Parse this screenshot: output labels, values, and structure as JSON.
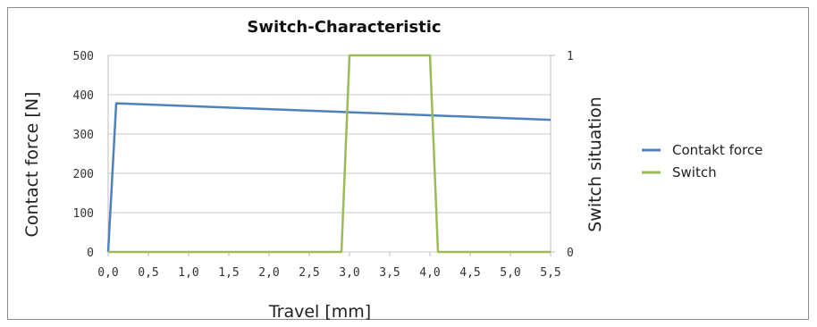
{
  "chart_data": {
    "type": "line",
    "title": "Switch-Characteristic",
    "xlabel": "Travel [mm]",
    "ylabel": "Contact force  [N]",
    "y2label": "Switch situation",
    "x_ticks": [
      "0,0",
      "0,5",
      "1,0",
      "1,5",
      "2,0",
      "2,5",
      "3,0",
      "3,5",
      "4,0",
      "4,5",
      "5,0",
      "5,5"
    ],
    "y_ticks": [
      "0",
      "100",
      "200",
      "300",
      "400",
      "500"
    ],
    "y2_ticks": [
      "0",
      "1"
    ],
    "xlim": [
      0,
      5.5
    ],
    "ylim": [
      0,
      500
    ],
    "y2lim": [
      0,
      1
    ],
    "grid": true,
    "legend_position": "right",
    "series": [
      {
        "name": "Contakt force",
        "axis": "left",
        "color": "#4f81bd",
        "x": [
          0.0,
          0.1,
          5.5
        ],
        "y": [
          0,
          378,
          336
        ]
      },
      {
        "name": "Switch",
        "axis": "right",
        "color": "#9bbb59",
        "x": [
          0.0,
          2.9,
          3.0,
          4.0,
          4.1,
          5.5
        ],
        "y": [
          0,
          0,
          1,
          1,
          0,
          0
        ]
      }
    ]
  }
}
